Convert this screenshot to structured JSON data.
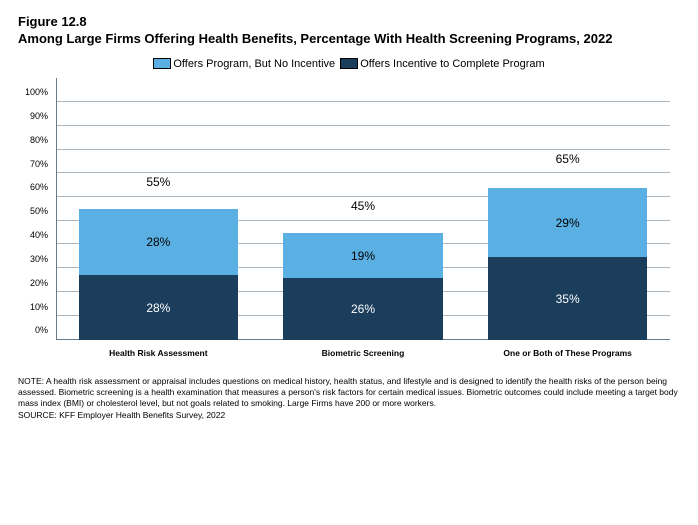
{
  "figure_number": "Figure 12.8",
  "title": "Among Large Firms Offering Health Benefits, Percentage With Health Screening Programs, 2022",
  "legend": {
    "series_top": {
      "label": "Offers Program, But No Incentive",
      "color": "#5bb0e3"
    },
    "series_bottom": {
      "label": "Offers Incentive to Complete Program",
      "color": "#1a3e5c"
    }
  },
  "chart": {
    "type": "stacked-bar",
    "ylim_max": 110,
    "yticks": [
      0,
      10,
      20,
      30,
      40,
      50,
      60,
      70,
      80,
      90,
      100
    ],
    "ytick_labels": [
      "0%",
      "10%",
      "20%",
      "30%",
      "40%",
      "50%",
      "60%",
      "70%",
      "80%",
      "90%",
      "100%"
    ],
    "gridline_color": "#657b8c",
    "background_color": "#ffffff",
    "categories": [
      {
        "label": "Health Risk Assessment",
        "bottom_value": 28,
        "bottom_label": "28%",
        "top_value": 28,
        "top_label": "28%",
        "total_value": 55,
        "total_label": "55%"
      },
      {
        "label": "Biometric Screening",
        "bottom_value": 26,
        "bottom_label": "26%",
        "top_value": 19,
        "top_label": "19%",
        "total_value": 45,
        "total_label": "45%"
      },
      {
        "label": "One or Both of These Programs",
        "bottom_value": 35,
        "bottom_label": "35%",
        "top_value": 29,
        "top_label": "29%",
        "total_value": 65,
        "total_label": "65%"
      }
    ]
  },
  "note": "NOTE: A health risk assessment or appraisal includes questions on medical history, health status, and lifestyle and is designed to identify the health risks of the person being assessed.  Biometric screening is a health examination that measures a person's risk factors for certain medical issues. Biometric outcomes could include meeting a target body mass index (BMI) or cholesterol level, but not goals related to smoking.  Large Firms have 200 or more workers.",
  "source": "SOURCE: KFF Employer Health Benefits Survey, 2022"
}
